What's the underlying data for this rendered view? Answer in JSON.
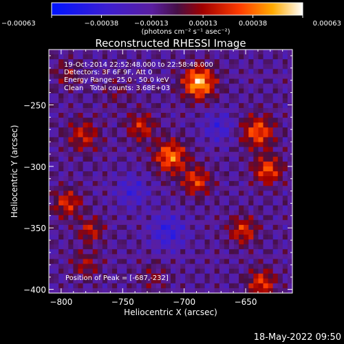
{
  "chart_data": {
    "type": "heatmap",
    "title": "Reconstructed RHESSI Image",
    "xlabel": "Heliocentric X (arcsec)",
    "ylabel": "Heliocentric Y (arcsec)",
    "xlim": [
      -810,
      -612
    ],
    "ylim": [
      -403,
      -205
    ],
    "x_ticks": [
      -800,
      -750,
      -700,
      -650
    ],
    "x_tick_labels": [
      "−800",
      "−750",
      "−700",
      "−650"
    ],
    "y_ticks": [
      -250,
      -300,
      -350,
      -400
    ],
    "y_tick_labels": [
      "−250",
      "−300",
      "−350",
      "−400"
    ],
    "colorbar": {
      "ticks": [
        -0.00063,
        -0.00038,
        -0.00013,
        0.00013,
        0.00038,
        0.00063
      ],
      "tick_labels": [
        "−0.00063",
        "−0.00038",
        "−0.00013",
        "0.00013",
        "0.00038",
        "0.00063"
      ],
      "unit_label": "(photons cm⁻² s⁻¹ asec⁻²)",
      "range": [
        -0.00063,
        0.00063
      ]
    },
    "annotations": [
      "19-Oct-2014 22:52:48.000 to 22:58:48.000",
      "Detectors: 3F 6F 9F, Att 0",
      "Energy Range: 25.0 - 50.0 keV",
      "Clean   Total counts: 3.68E+03"
    ],
    "peak_label": "Position of Peak = [-687,-232]",
    "grid": false,
    "features": [
      {
        "x": -688,
        "y": -232,
        "sigma": 9,
        "value": 0.00063
      },
      {
        "x": -711,
        "y": -292,
        "sigma": 9,
        "value": 0.0005
      },
      {
        "x": -690,
        "y": -312,
        "sigma": 8,
        "value": 0.00038
      },
      {
        "x": -735,
        "y": -268,
        "sigma": 8,
        "value": 0.00032
      },
      {
        "x": -640,
        "y": -272,
        "sigma": 9,
        "value": 0.00045
      },
      {
        "x": -632,
        "y": -303,
        "sigma": 8,
        "value": 0.00042
      },
      {
        "x": -652,
        "y": -352,
        "sigma": 8,
        "value": 0.00035
      },
      {
        "x": -637,
        "y": -395,
        "sigma": 8,
        "value": 0.00038
      },
      {
        "x": -795,
        "y": -330,
        "sigma": 8,
        "value": 0.00035
      },
      {
        "x": -776,
        "y": -352,
        "sigma": 7,
        "value": 0.0003
      },
      {
        "x": -782,
        "y": -275,
        "sigma": 9,
        "value": 0.0003
      },
      {
        "x": -780,
        "y": -380,
        "sigma": 8,
        "value": 0.00022
      },
      {
        "x": -795,
        "y": -225,
        "sigma": 8,
        "value": 0.00018
      },
      {
        "x": -725,
        "y": -390,
        "sigma": 8,
        "value": 0.00015
      },
      {
        "x": -755,
        "y": -240,
        "sigma": 8,
        "value": 0.00012
      },
      {
        "x": -713,
        "y": -353,
        "sigma": 10,
        "value": -0.00025
      },
      {
        "x": -742,
        "y": -320,
        "sigma": 9,
        "value": -0.0002
      },
      {
        "x": -672,
        "y": -268,
        "sigma": 9,
        "value": -0.0002
      }
    ]
  },
  "footer": {
    "date": "18-May-2022 09:50"
  }
}
